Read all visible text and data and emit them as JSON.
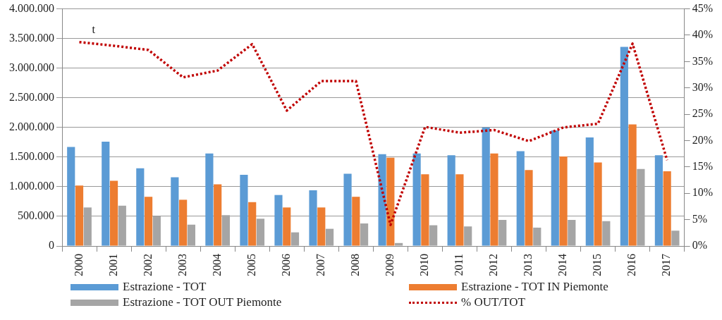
{
  "chart_data": {
    "type": "bar",
    "categories": [
      "2000",
      "2001",
      "2002",
      "2003",
      "2004",
      "2005",
      "2006",
      "2007",
      "2008",
      "2009",
      "2010",
      "2011",
      "2012",
      "2013",
      "2014",
      "2015",
      "2016",
      "2017"
    ],
    "series": [
      {
        "name": "Estrazione - TOT",
        "color": "#5b9bd5",
        "values": [
          1670000,
          1760000,
          1310000,
          1160000,
          1560000,
          1200000,
          860000,
          940000,
          1220000,
          1550000,
          1560000,
          1530000,
          2000000,
          1600000,
          1950000,
          1830000,
          3360000,
          1530000
        ]
      },
      {
        "name": "Estrazione - TOT IN Piemonte",
        "color": "#ed7d31",
        "values": [
          1020000,
          1100000,
          830000,
          780000,
          1040000,
          740000,
          650000,
          650000,
          830000,
          1490000,
          1210000,
          1210000,
          1560000,
          1280000,
          1510000,
          1410000,
          2050000,
          1260000
        ]
      },
      {
        "name": "Estrazione - TOT OUT Piemonte",
        "color": "#a5a5a5",
        "values": [
          650000,
          680000,
          500000,
          360000,
          520000,
          460000,
          230000,
          290000,
          380000,
          50000,
          350000,
          330000,
          440000,
          310000,
          440000,
          420000,
          1300000,
          260000
        ]
      },
      {
        "name": "% OUT/TOT",
        "type": "line",
        "axis": "y2",
        "color": "#c00000",
        "line_style": "dotted",
        "marker": "none",
        "values": [
          38.7,
          38,
          37.2,
          32,
          33.3,
          38.3,
          25.7,
          31.3,
          31.3,
          4,
          22.6,
          21.5,
          22,
          19.9,
          22.5,
          23.2,
          38.4,
          16.3
        ]
      }
    ],
    "ylim": [
      0,
      4000000
    ],
    "yticks": [
      {
        "value": 0,
        "label": "0"
      },
      {
        "value": 500000,
        "label": "500.000"
      },
      {
        "value": 1000000,
        "label": "1.000.000"
      },
      {
        "value": 1500000,
        "label": "1.500.000"
      },
      {
        "value": 2000000,
        "label": "2.000.000"
      },
      {
        "value": 2500000,
        "label": "2.500.000"
      },
      {
        "value": 3000000,
        "label": "3.000.000"
      },
      {
        "value": 3500000,
        "label": "3.500.000"
      },
      {
        "value": 4000000,
        "label": "4.000.000"
      }
    ],
    "y2lim": [
      0,
      45
    ],
    "y2ticks": [
      {
        "value": 0,
        "label": "0%"
      },
      {
        "value": 5,
        "label": "5%"
      },
      {
        "value": 10,
        "label": "10%"
      },
      {
        "value": 15,
        "label": "15%"
      },
      {
        "value": 20,
        "label": "20%"
      },
      {
        "value": 25,
        "label": "25%"
      },
      {
        "value": 30,
        "label": "30%"
      },
      {
        "value": 35,
        "label": "35%"
      },
      {
        "value": 40,
        "label": "40%"
      },
      {
        "value": 45,
        "label": "45%"
      }
    ],
    "annotations": [
      "t"
    ],
    "grid": "y",
    "legend": "bottom"
  }
}
